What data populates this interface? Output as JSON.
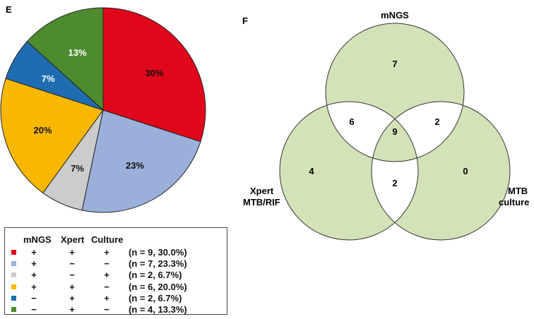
{
  "chart_data": [
    {
      "type": "pie",
      "panel_label": "E",
      "slices": [
        {
          "label": "30%",
          "value": 30.0,
          "color": "#e0071a"
        },
        {
          "label": "23%",
          "value": 23.3,
          "color": "#9ab0da"
        },
        {
          "label": "7%",
          "value": 6.7,
          "color": "#cccccc"
        },
        {
          "label": "20%",
          "value": 20.0,
          "color": "#f9b800"
        },
        {
          "label": "7%",
          "value": 6.7,
          "color": "#1f6db0"
        },
        {
          "label": "13%",
          "value": 13.3,
          "color": "#4d8b2e"
        }
      ],
      "legend": {
        "headers": [
          "mNGS",
          "Xpert",
          "Culture"
        ],
        "rows": [
          {
            "color": "#e0071a",
            "mngs": "+",
            "xpert": "+",
            "culture": "+",
            "stat": "(n = 9, 30.0%)"
          },
          {
            "color": "#9ab0da",
            "mngs": "+",
            "xpert": "−",
            "culture": "−",
            "stat": "(n = 7, 23.3%)"
          },
          {
            "color": "#cccccc",
            "mngs": "+",
            "xpert": "−",
            "culture": "+",
            "stat": "(n = 2, 6.7%)"
          },
          {
            "color": "#f9b800",
            "mngs": "+",
            "xpert": "+",
            "culture": "−",
            "stat": "(n = 6, 20.0%)"
          },
          {
            "color": "#1f6db0",
            "mngs": "−",
            "xpert": "+",
            "culture": "+",
            "stat": "(n = 2, 6.7%)"
          },
          {
            "color": "#4d8b2e",
            "mngs": "−",
            "xpert": "+",
            "culture": "−",
            "stat": "(n = 4, 13.3%)"
          }
        ]
      }
    },
    {
      "type": "venn",
      "panel_label": "F",
      "sets": [
        "mNGS",
        "Xpert MTB/RIF",
        "MTB culture"
      ],
      "set_label_lines": [
        [
          "mNGS"
        ],
        [
          "Xpert",
          "MTB/RIF"
        ],
        [
          "MTB",
          "culture"
        ]
      ],
      "regions": {
        "mngs_only": 7,
        "xpert_only": 4,
        "culture_only": 0,
        "mngs_xpert": 6,
        "mngs_culture": 2,
        "xpert_culture": 2,
        "all_three": 9
      },
      "colors": {
        "fill": "#d3e2b8",
        "overlap_fill": "#ffffff",
        "stroke": "#333333"
      }
    }
  ]
}
